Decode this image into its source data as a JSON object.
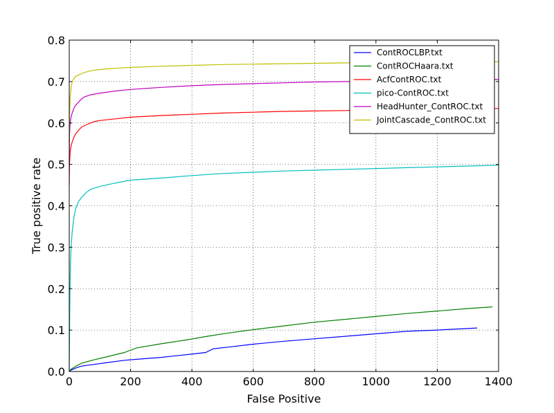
{
  "chart_data": {
    "type": "line",
    "xlabel": "False Positive",
    "ylabel": "True positive rate",
    "xlim": [
      0,
      1400
    ],
    "ylim": [
      0,
      0.8
    ],
    "xticks": [
      0,
      200,
      400,
      600,
      800,
      1000,
      1200,
      1400
    ],
    "yticks": [
      0.0,
      0.1,
      0.2,
      0.3,
      0.4,
      0.5,
      0.6,
      0.7,
      0.8
    ],
    "xtick_labels": [
      "0",
      "200",
      "400",
      "600",
      "800",
      "1000",
      "1200",
      "1400"
    ],
    "ytick_labels": [
      "0.0",
      "0.1",
      "0.2",
      "0.3",
      "0.4",
      "0.5",
      "0.6",
      "0.7",
      "0.8"
    ],
    "grid": true,
    "legend_position": "top-right",
    "series": [
      {
        "name": "ContROCLBP.txt",
        "color": "#0000ff",
        "x": [
          0,
          5,
          20,
          40,
          80,
          120,
          180,
          230,
          300,
          350,
          400,
          445,
          470,
          520,
          600,
          700,
          800,
          900,
          1000,
          1100,
          1200,
          1330
        ],
        "y": [
          0,
          0.003,
          0.008,
          0.013,
          0.017,
          0.021,
          0.027,
          0.03,
          0.034,
          0.038,
          0.042,
          0.046,
          0.055,
          0.059,
          0.066,
          0.073,
          0.079,
          0.085,
          0.091,
          0.097,
          0.1,
          0.105
        ]
      },
      {
        "name": "ContROCHaara.txt",
        "color": "#008000",
        "x": [
          0,
          5,
          20,
          40,
          80,
          120,
          180,
          220,
          300,
          380,
          450,
          520,
          600,
          700,
          800,
          900,
          1000,
          1100,
          1200,
          1300,
          1380
        ],
        "y": [
          0,
          0.005,
          0.012,
          0.02,
          0.028,
          0.035,
          0.046,
          0.057,
          0.067,
          0.076,
          0.085,
          0.093,
          0.101,
          0.11,
          0.119,
          0.126,
          0.133,
          0.14,
          0.146,
          0.152,
          0.156
        ]
      },
      {
        "name": "AcfContROC.txt",
        "color": "#ff0000",
        "x": [
          0,
          1,
          3,
          6,
          10,
          15,
          20,
          30,
          40,
          60,
          80,
          100,
          150,
          200,
          300,
          400,
          500,
          600,
          700,
          800,
          900,
          1000,
          1100,
          1200,
          1300,
          1400
        ],
        "y": [
          0.45,
          0.5,
          0.53,
          0.545,
          0.555,
          0.565,
          0.573,
          0.582,
          0.59,
          0.597,
          0.603,
          0.606,
          0.61,
          0.614,
          0.618,
          0.621,
          0.624,
          0.626,
          0.628,
          0.629,
          0.63,
          0.631,
          0.632,
          0.633,
          0.634,
          0.635
        ]
      },
      {
        "name": "pico-ContROC.txt",
        "color": "#00bfbf",
        "x": [
          0,
          1,
          2,
          4,
          6,
          8,
          10,
          13,
          17,
          22,
          30,
          40,
          55,
          70,
          100,
          150,
          200,
          300,
          400,
          500,
          600,
          700,
          800,
          900,
          1000,
          1100,
          1200,
          1300,
          1400
        ],
        "y": [
          0,
          0.08,
          0.18,
          0.26,
          0.3,
          0.32,
          0.34,
          0.36,
          0.38,
          0.395,
          0.41,
          0.42,
          0.432,
          0.44,
          0.447,
          0.455,
          0.462,
          0.467,
          0.473,
          0.478,
          0.481,
          0.484,
          0.486,
          0.488,
          0.49,
          0.492,
          0.494,
          0.496,
          0.498
        ]
      },
      {
        "name": "HeadHunter_ContROC.txt",
        "color": "#bf00bf",
        "x": [
          0,
          1,
          3,
          6,
          10,
          15,
          20,
          30,
          40,
          50,
          70,
          100,
          150,
          200,
          300,
          400,
          500,
          600,
          700,
          800,
          900,
          1000,
          1100,
          1200,
          1300,
          1400
        ],
        "y": [
          0.5,
          0.57,
          0.6,
          0.615,
          0.625,
          0.635,
          0.642,
          0.65,
          0.658,
          0.663,
          0.668,
          0.672,
          0.677,
          0.681,
          0.686,
          0.69,
          0.693,
          0.695,
          0.697,
          0.699,
          0.7,
          0.701,
          0.702,
          0.703,
          0.704,
          0.705
        ]
      },
      {
        "name": "JointCascade_ContROC.txt",
        "color": "#bfbf00",
        "x": [
          0,
          1,
          3,
          6,
          10,
          15,
          20,
          30,
          40,
          50,
          70,
          100,
          150,
          200,
          300,
          400,
          500,
          600,
          700,
          800,
          900,
          1000,
          1100,
          1200,
          1300,
          1400
        ],
        "y": [
          0.55,
          0.62,
          0.66,
          0.685,
          0.7,
          0.707,
          0.712,
          0.716,
          0.719,
          0.722,
          0.726,
          0.729,
          0.732,
          0.734,
          0.737,
          0.739,
          0.741,
          0.742,
          0.743,
          0.744,
          0.745,
          0.746,
          0.746,
          0.747,
          0.747,
          0.748
        ]
      }
    ]
  }
}
